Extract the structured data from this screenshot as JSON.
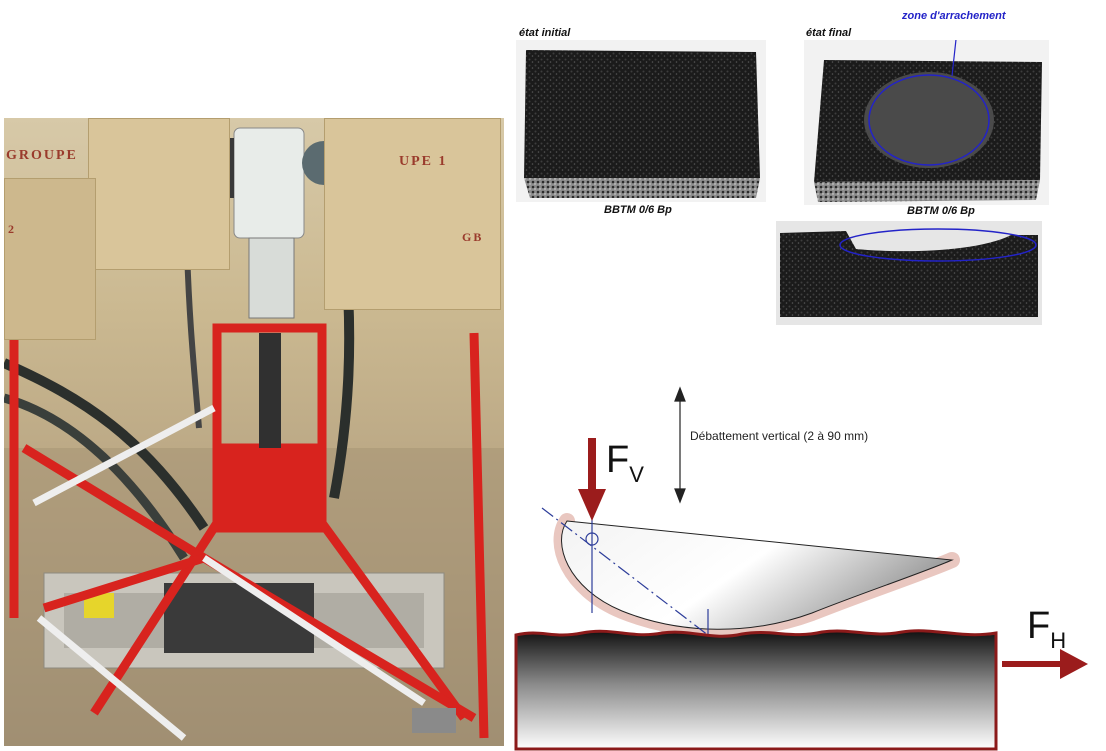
{
  "samples": {
    "initial_label": "état initial",
    "final_label": "état final",
    "zone_label": "zone d'arrachement",
    "caption_initial": "BBTM 0/6 Bp",
    "caption_final": "BBTM 0/6 Bp"
  },
  "rig_photo": {
    "wall_text_left": "GROUPE",
    "wall_text_right": "UPE 1",
    "wall_text_gb": "GB",
    "wall_text_2": "2"
  },
  "diagram": {
    "travel_label": "Débattement vertical  (2 à 90 mm)",
    "force_vertical": "F",
    "force_vertical_sub": "V",
    "force_horizontal": "F",
    "force_horizontal_sub": "H"
  },
  "colors": {
    "force_arrow": "#9b1c1c",
    "axis_line": "#2d3d9a",
    "zone_ellipse": "#2323c8",
    "rig_frame": "#d8231e"
  }
}
